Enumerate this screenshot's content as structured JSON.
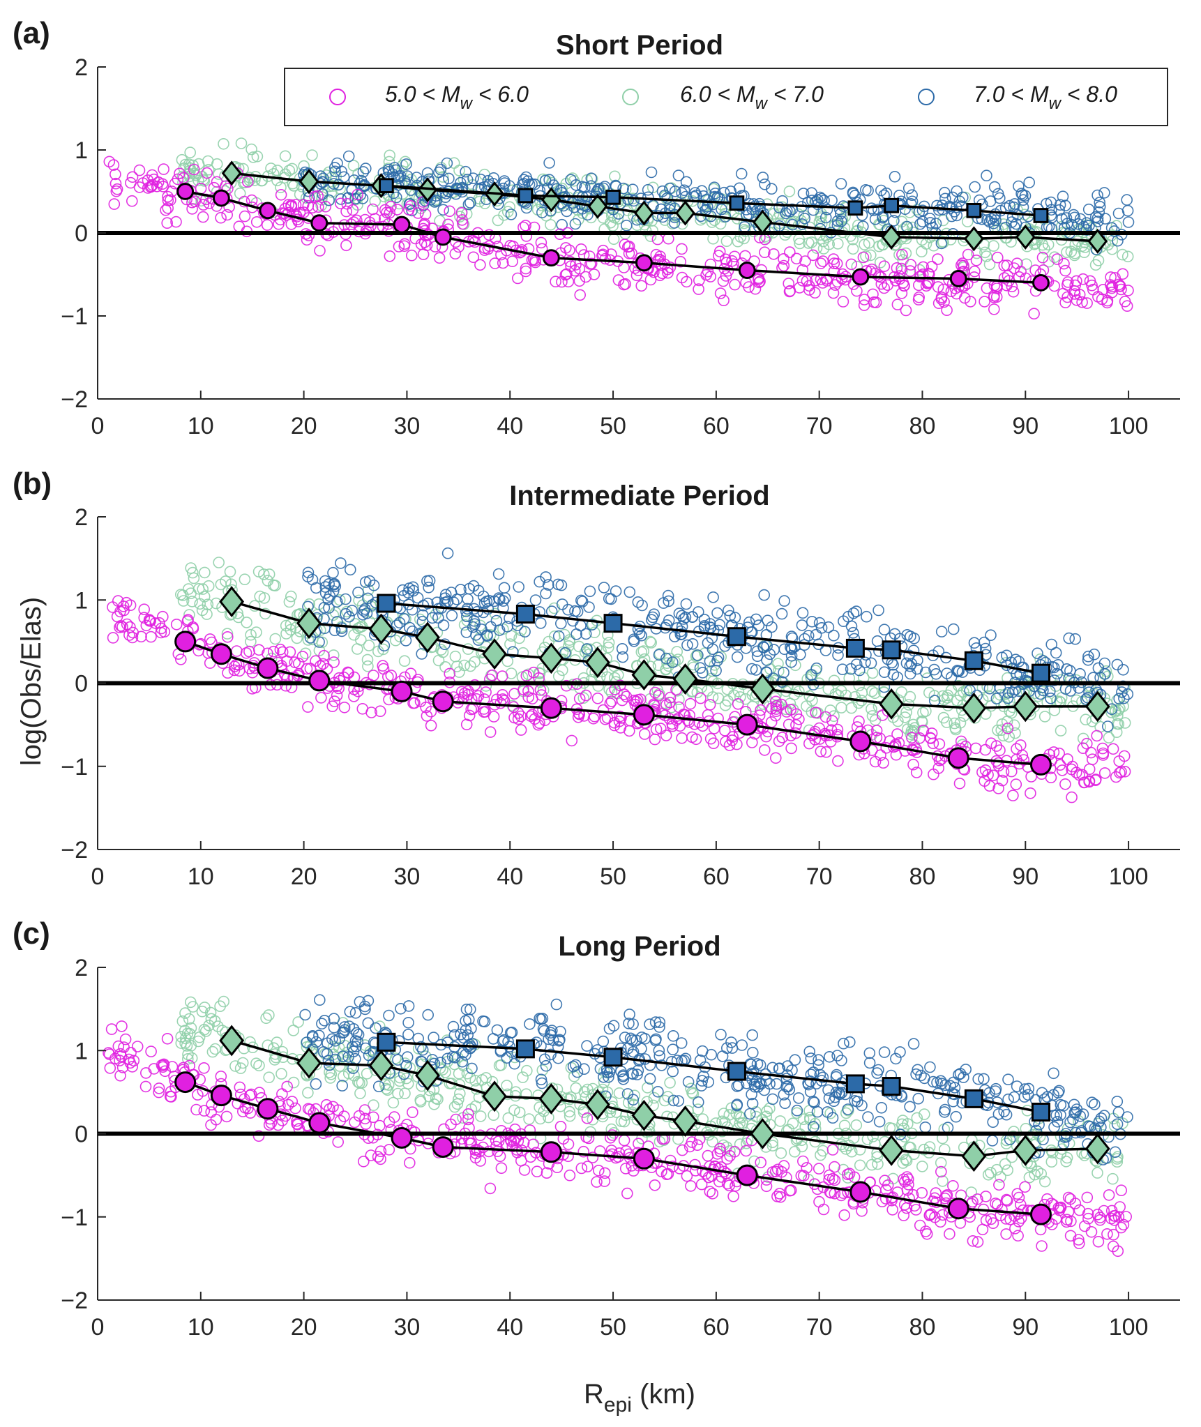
{
  "chart_data": [
    {
      "type": "scatter",
      "panel_label": "(a)",
      "title": "Short Period",
      "xlabel": "",
      "ylabel": "",
      "xlim": [
        0,
        105
      ],
      "ylim": [
        -2,
        2
      ],
      "xticks": [
        0,
        10,
        20,
        30,
        40,
        50,
        60,
        70,
        80,
        90,
        100
      ],
      "yticks": [
        2,
        1,
        0,
        -1,
        -2
      ],
      "ytick_labels": [
        "2",
        "1",
        "0",
        "−1",
        "−2"
      ],
      "legend": {
        "placement": "top-right",
        "entries": [
          {
            "prefix": "5.0 < M",
            "sub": "w",
            "suffix": " < 6.0",
            "color": "#e020e0"
          },
          {
            "prefix": "6.0 < M",
            "sub": "w",
            "suffix": " < 7.0",
            "color": "#8fcfa8"
          },
          {
            "prefix": "7.0 < M",
            "sub": "w",
            "suffix": " < 8.0",
            "color": "#2c6aa8"
          }
        ]
      },
      "series": [
        {
          "x": [
            8.5,
            12,
            16.5,
            21.5,
            29.5,
            33.5,
            44,
            53,
            63,
            74,
            83.5,
            91.5
          ],
          "y": [
            0.5,
            0.42,
            0.27,
            0.12,
            0.1,
            -0.05,
            -0.3,
            -0.36,
            -0.45,
            -0.53,
            -0.55,
            -0.6
          ],
          "marker": "circle",
          "color": "#e020e0"
        },
        {
          "x": [
            13,
            20.5,
            27.5,
            32,
            38.5,
            44,
            48.5,
            53,
            57,
            64.5,
            77,
            85,
            90,
            97
          ],
          "y": [
            0.72,
            0.62,
            0.57,
            0.52,
            0.47,
            0.4,
            0.32,
            0.24,
            0.24,
            0.13,
            -0.05,
            -0.07,
            -0.05,
            -0.1
          ],
          "marker": "diamond",
          "color": "#8fcfa8"
        },
        {
          "x": [
            28,
            41.5,
            50,
            62,
            73.5,
            77,
            85,
            91.5
          ],
          "y": [
            0.57,
            0.45,
            0.43,
            0.36,
            0.3,
            0.33,
            0.27,
            0.21
          ],
          "marker": "square",
          "color": "#2c6aa8"
        }
      ]
    },
    {
      "type": "scatter",
      "panel_label": "(b)",
      "title": "Intermediate Period",
      "xlabel": "",
      "ylabel": "log(Obs/Elas)",
      "xlim": [
        0,
        105
      ],
      "ylim": [
        -2,
        2
      ],
      "xticks": [
        0,
        10,
        20,
        30,
        40,
        50,
        60,
        70,
        80,
        90,
        100
      ],
      "yticks": [
        2,
        1,
        0,
        -1,
        -2
      ],
      "ytick_labels": [
        "2",
        "1",
        "0",
        "−1",
        "−2"
      ],
      "series": [
        {
          "x": [
            8.5,
            12,
            16.5,
            21.5,
            29.5,
            33.5,
            44,
            53,
            63,
            74,
            83.5,
            91.5
          ],
          "y": [
            0.5,
            0.35,
            0.18,
            0.03,
            -0.1,
            -0.22,
            -0.3,
            -0.38,
            -0.5,
            -0.7,
            -0.9,
            -0.98
          ],
          "marker": "circle",
          "color": "#e020e0"
        },
        {
          "x": [
            13,
            20.5,
            27.5,
            32,
            38.5,
            44,
            48.5,
            53,
            57,
            64.5,
            77,
            85,
            90,
            97
          ],
          "y": [
            0.98,
            0.72,
            0.65,
            0.55,
            0.35,
            0.3,
            0.25,
            0.1,
            0.05,
            -0.07,
            -0.25,
            -0.3,
            -0.28,
            -0.28
          ],
          "marker": "diamond",
          "color": "#8fcfa8"
        },
        {
          "x": [
            28,
            41.5,
            50,
            62,
            73.5,
            77,
            85,
            91.5
          ],
          "y": [
            0.96,
            0.83,
            0.72,
            0.56,
            0.42,
            0.4,
            0.27,
            0.12
          ],
          "marker": "square",
          "color": "#2c6aa8"
        }
      ]
    },
    {
      "type": "scatter",
      "panel_label": "(c)",
      "title": "Long Period",
      "xlabel_main": "R",
      "xlabel_sub": "epi",
      "xlabel_suffix": " (km)",
      "ylabel": "",
      "xlim": [
        0,
        105
      ],
      "ylim": [
        -2,
        2
      ],
      "xticks": [
        0,
        10,
        20,
        30,
        40,
        50,
        60,
        70,
        80,
        90,
        100
      ],
      "yticks": [
        2,
        1,
        0,
        -1,
        -2
      ],
      "ytick_labels": [
        "2",
        "1",
        "0",
        "−1",
        "−2"
      ],
      "series": [
        {
          "x": [
            8.5,
            12,
            16.5,
            21.5,
            29.5,
            33.5,
            44,
            53,
            63,
            74,
            83.5,
            91.5
          ],
          "y": [
            0.62,
            0.46,
            0.3,
            0.13,
            -0.05,
            -0.16,
            -0.22,
            -0.3,
            -0.5,
            -0.7,
            -0.9,
            -0.97
          ],
          "marker": "circle",
          "color": "#e020e0"
        },
        {
          "x": [
            13,
            20.5,
            27.5,
            32,
            38.5,
            44,
            48.5,
            53,
            57,
            64.5,
            77,
            85,
            90,
            97
          ],
          "y": [
            1.12,
            0.85,
            0.82,
            0.7,
            0.45,
            0.42,
            0.35,
            0.22,
            0.15,
            0.0,
            -0.2,
            -0.27,
            -0.2,
            -0.18
          ],
          "marker": "diamond",
          "color": "#8fcfa8"
        },
        {
          "x": [
            28,
            41.5,
            50,
            62,
            73.5,
            77,
            85,
            91.5
          ],
          "y": [
            1.1,
            1.02,
            0.92,
            0.75,
            0.6,
            0.57,
            0.42,
            0.26
          ],
          "marker": "square",
          "color": "#2c6aa8"
        }
      ]
    }
  ]
}
